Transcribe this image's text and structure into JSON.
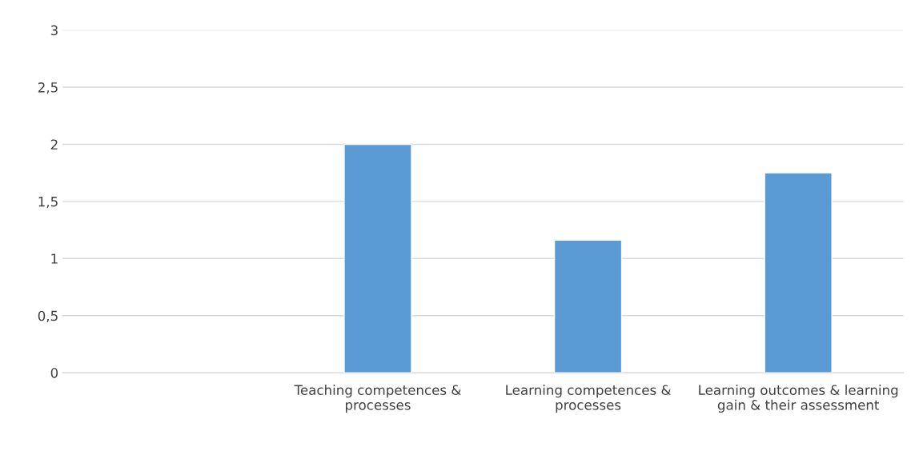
{
  "chart_data": {
    "type": "bar",
    "categories": [
      null,
      "Teaching competences & processes",
      "Learning competences & processes",
      "Learning outcomes & learning gain & their assessment"
    ],
    "values": [
      null,
      2.0,
      1.16,
      1.75
    ],
    "color": "#5b9bd5",
    "ylim": [
      0,
      3
    ],
    "yticks": [
      0,
      {
        "value": 0.5,
        "label": "0,5"
      },
      1,
      {
        "value": 1.5,
        "label": "1,5"
      },
      2,
      {
        "value": 2.5,
        "label": "2,5"
      },
      3
    ],
    "grid": "y"
  }
}
